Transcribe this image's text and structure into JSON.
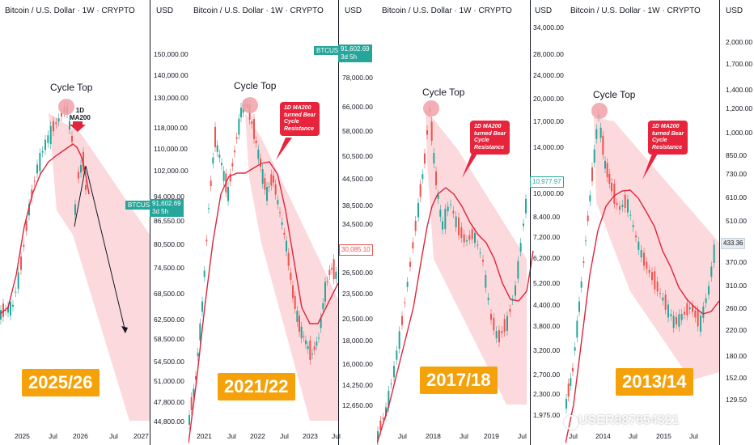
{
  "panels": [
    {
      "id": "p1",
      "title": "Bitcoin / U.S. Dollar · 1W · CRYPTO",
      "currency": "USD",
      "cycle_label": "Cycle Top",
      "year_label": "2025/26",
      "ma_label_line1": "1D",
      "ma_label_line2": "MA200",
      "price_tag_symbol": "BTCUSD",
      "price_tag_value": "91,602.69",
      "price_tag_time": "3d 5h",
      "y_ticks": [
        "150,000.00",
        "140,000.00",
        "130,000.00",
        "118,000.00",
        "110,000.00",
        "102,000.00",
        "94,000.00",
        "86,550.00",
        "80,500.00",
        "74,500.00",
        "68,500.00",
        "62,500.00",
        "58,500.00",
        "54,500.00",
        "51,000.00",
        "47,800.00",
        "44,800.00"
      ],
      "x_ticks": [
        "2025",
        "Jul",
        "2026",
        "Jul",
        "2027"
      ]
    },
    {
      "id": "p2",
      "title": "Bitcoin / U.S. Dollar · 1W · CRYPTO",
      "currency": "USD",
      "cycle_label": "Cycle Top",
      "year_label": "2021/22",
      "callout_lines": [
        "1D MA200",
        "turned Bear",
        "Cycle",
        "Resistance"
      ],
      "price_tag_symbol": "BTCUSD",
      "price_tag_value": "91,602.69",
      "price_tag_time": "3d 5h",
      "price_label": "30,085.10",
      "y_ticks": [
        "78,000.00",
        "66,000.00",
        "58,000.00",
        "50,500.00",
        "44,500.00",
        "38,500.00",
        "34,500.00",
        "26,500.00",
        "23,500.00",
        "20,500.00",
        "18,000.00",
        "16,000.00",
        "14,250.00",
        "12,650.00"
      ],
      "x_ticks": [
        "2021",
        "Jul",
        "2022",
        "Jul",
        "2023",
        "Jul"
      ]
    },
    {
      "id": "p3",
      "title": "Bitcoin / U.S. Dollar · 1W · CRYPTO",
      "currency": "USD",
      "cycle_label": "Cycle Top",
      "year_label": "2017/18",
      "callout_lines": [
        "1D MA200",
        "turned Bear",
        "Cycle",
        "Resistance"
      ],
      "price_label": "10,977.97",
      "y_ticks": [
        "34,000.00",
        "28,000.00",
        "24,000.00",
        "20,000.00",
        "17,000.00",
        "14,000.00",
        "10,000.00",
        "8,400.00",
        "7,200.00",
        "6,200.00",
        "5,200.00",
        "4,400.00",
        "3,800.00",
        "3,200.00",
        "2,700.00",
        "2,300.00",
        "1,975.00"
      ],
      "x_ticks": [
        "Jul",
        "2018",
        "Jul",
        "2019",
        "Jul"
      ]
    },
    {
      "id": "p4",
      "title": "Bitcoin / U.S. Dollar · 1W · CRYPTO",
      "currency": "USD",
      "cycle_label": "Cycle Top",
      "year_label": "2013/14",
      "callout_lines": [
        "1D MA200",
        "turned Bear",
        "Cycle",
        "Resistance"
      ],
      "price_label": "433.36",
      "y_ticks": [
        "2,000.00",
        "1,700.00",
        "1,400.00",
        "1,200.00",
        "1,000.00",
        "850.00",
        "730.00",
        "610.00",
        "510.00",
        "370.00",
        "310.00",
        "260.00",
        "220.00",
        "180.00",
        "152.00",
        "129.50"
      ],
      "x_ticks": [
        "Jul",
        "2014",
        "Jul",
        "2015",
        "Jul"
      ]
    }
  ],
  "watermark": "USER987654321",
  "colors": {
    "up": "#26a69a",
    "down": "#ef5350",
    "ma": "#e0243c",
    "channel": "#fbd2d6",
    "highlight": "#f2a0a8",
    "year_box": "#f5a20a",
    "callout": "#e8243d",
    "price_tag": "#26a69a"
  }
}
